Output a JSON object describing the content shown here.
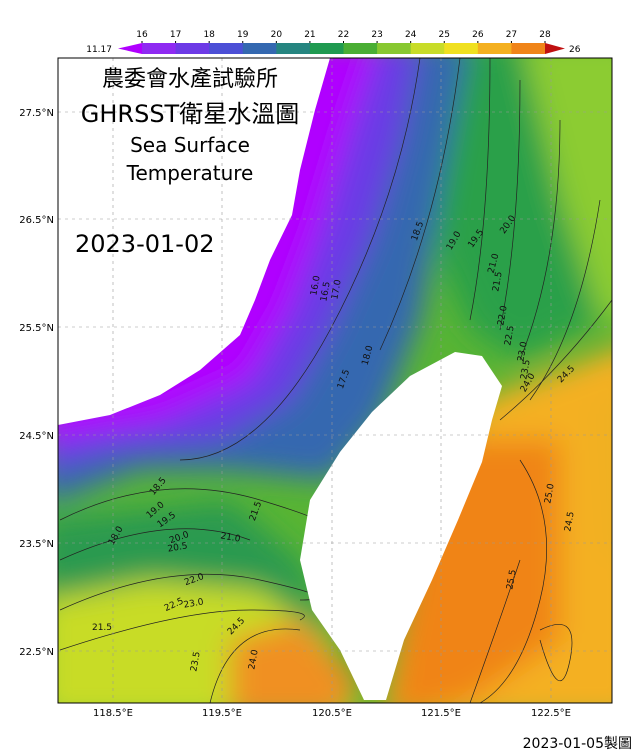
{
  "header": {
    "lines": [
      "農委會水產試驗所",
      "GHRSST衛星水溫圖",
      "Sea Surface",
      "Temperature"
    ],
    "date": "2023-01-02"
  },
  "colorbar": {
    "min_label": "11.17",
    "max_label": "26",
    "ticks": [
      16,
      17,
      18,
      19,
      20,
      21,
      22,
      23,
      24,
      25,
      26,
      27,
      28
    ],
    "colors": [
      "#b000ff",
      "#8f2af2",
      "#6d3ae6",
      "#4c4fd6",
      "#3468b0",
      "#258580",
      "#1f9a50",
      "#4aae34",
      "#88c830",
      "#c8dc28",
      "#f0e020",
      "#f4b020",
      "#f08418",
      "#e04810",
      "#c01010"
    ]
  },
  "latitude_labels": [
    "27.5°N",
    "26.5°N",
    "25.5°N",
    "24.5°N",
    "23.5°N",
    "22.5°N"
  ],
  "longitude_labels": [
    "118.5°E",
    "119.5°E",
    "120.5°E",
    "121.5°E",
    "122.5°E"
  ],
  "contour_labels": [
    "18.5",
    "19.0",
    "19.5",
    "20.0",
    "21.0",
    "21.5",
    "22.0",
    "22.5",
    "23.0",
    "23.5",
    "24.0",
    "24.5",
    "16.0",
    "16.5",
    "17.0",
    "17.5",
    "18.0",
    "18.5",
    "19.0",
    "19.5",
    "20.0",
    "20.5",
    "21.0",
    "21.5",
    "18.0",
    "22.0",
    "22.5",
    "23.0",
    "21.5",
    "24.5",
    "23.5",
    "24.0",
    "25.0",
    "24.5",
    "25.5"
  ],
  "footer": "2023-01-05製圖"
}
